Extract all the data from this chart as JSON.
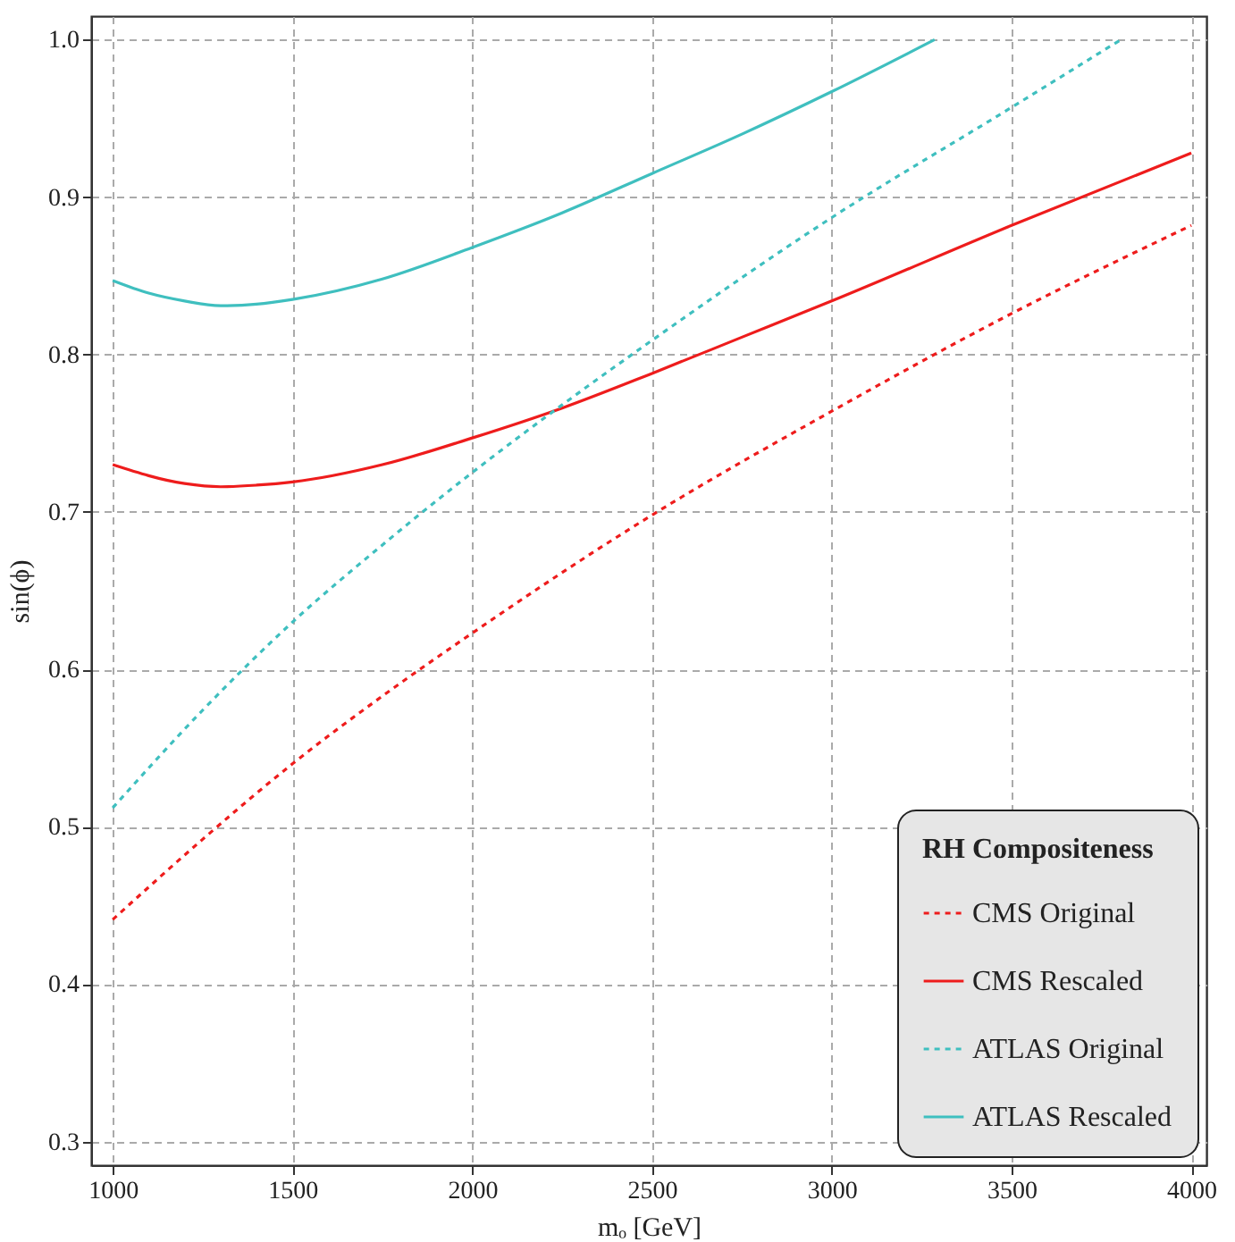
{
  "chart_data": {
    "type": "line",
    "xlabel": "mₒ [GeV]",
    "ylabel": "sin(ϕ)",
    "legend_title": "RH Compositeness",
    "legend": "bottom right",
    "grid": true,
    "marker": "none",
    "xlim": [
      940,
      4042
    ],
    "xticks": [
      1000,
      1500,
      2000,
      2500,
      3000,
      3500,
      4000
    ],
    "ylim": [
      0.285,
      1.015
    ],
    "yticks": [
      0.3,
      0.4,
      0.5,
      0.6,
      0.7,
      0.8,
      0.9,
      {
        "value": 1,
        "label": "1.0"
      }
    ],
    "series": [
      {
        "name": "CMS Original",
        "color": "#ee1c1c",
        "line_style": "dotted",
        "x": [
          1000,
          1250,
          1500,
          1750,
          2000,
          2500,
          3000,
          3500,
          4000
        ],
        "values": [
          0.441,
          0.492,
          0.54,
          0.583,
          0.623,
          0.698,
          0.764,
          0.826,
          0.882
        ]
      },
      {
        "name": "CMS Rescaled",
        "color": "#ee1c1c",
        "line_style": "solid",
        "x": [
          1000,
          1200,
          1300,
          1400,
          1500,
          1750,
          2000,
          2250,
          2500,
          2750,
          3000,
          3500,
          4000
        ],
        "values": [
          0.73,
          0.718,
          0.716,
          0.717,
          0.719,
          0.73,
          0.747,
          0.766,
          0.788,
          0.811,
          0.834,
          0.882,
          0.928
        ]
      },
      {
        "name": "ATLAS Original",
        "color": "#3fbfbf",
        "line_style": "dotted",
        "x": [
          1000,
          1250,
          1500,
          1750,
          2000,
          2250,
          2500,
          3000,
          3500,
          3804
        ],
        "values": [
          0.512,
          0.574,
          0.63,
          0.679,
          0.725,
          0.768,
          0.809,
          0.887,
          0.957,
          1.0
        ]
      },
      {
        "name": "ATLAS Rescaled",
        "color": "#3fbfbf",
        "line_style": "solid",
        "x": [
          1000,
          1100,
          1200,
          1300,
          1400,
          1500,
          1750,
          2000,
          2250,
          2500,
          2750,
          3000,
          3286
        ],
        "values": [
          0.847,
          0.839,
          0.834,
          0.831,
          0.832,
          0.835,
          0.848,
          0.868,
          0.89,
          0.915,
          0.94,
          0.967,
          1.0
        ]
      }
    ]
  }
}
